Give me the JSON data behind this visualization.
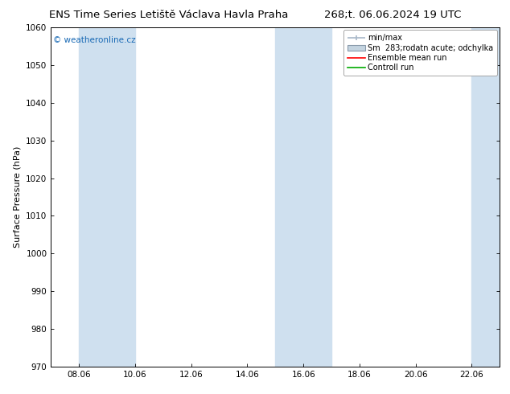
{
  "title_left": "ENS Time Series Letiště Václava Havla Praha",
  "title_right": "268;t. 06.06.2024 19 UTC",
  "ylabel": "Surface Pressure (hPa)",
  "watermark": "© weatheronline.cz",
  "ylim": [
    970,
    1060
  ],
  "yticks": [
    970,
    980,
    990,
    1000,
    1010,
    1020,
    1030,
    1040,
    1050,
    1060
  ],
  "xtick_labels": [
    "08.06",
    "10.06",
    "12.06",
    "14.06",
    "16.06",
    "18.06",
    "20.06",
    "22.06"
  ],
  "blue_band_color": "#cfe0ef",
  "background_color": "#ffffff",
  "title_fontsize": 9.5,
  "axis_fontsize": 8,
  "tick_fontsize": 7.5,
  "watermark_color": "#1a6ab5",
  "legend_fontsize": 7,
  "minmax_color": "#a8b8c8",
  "sm_color": "#c4d4e0",
  "ens_color": "#ff0000",
  "ctrl_color": "#00aa00"
}
